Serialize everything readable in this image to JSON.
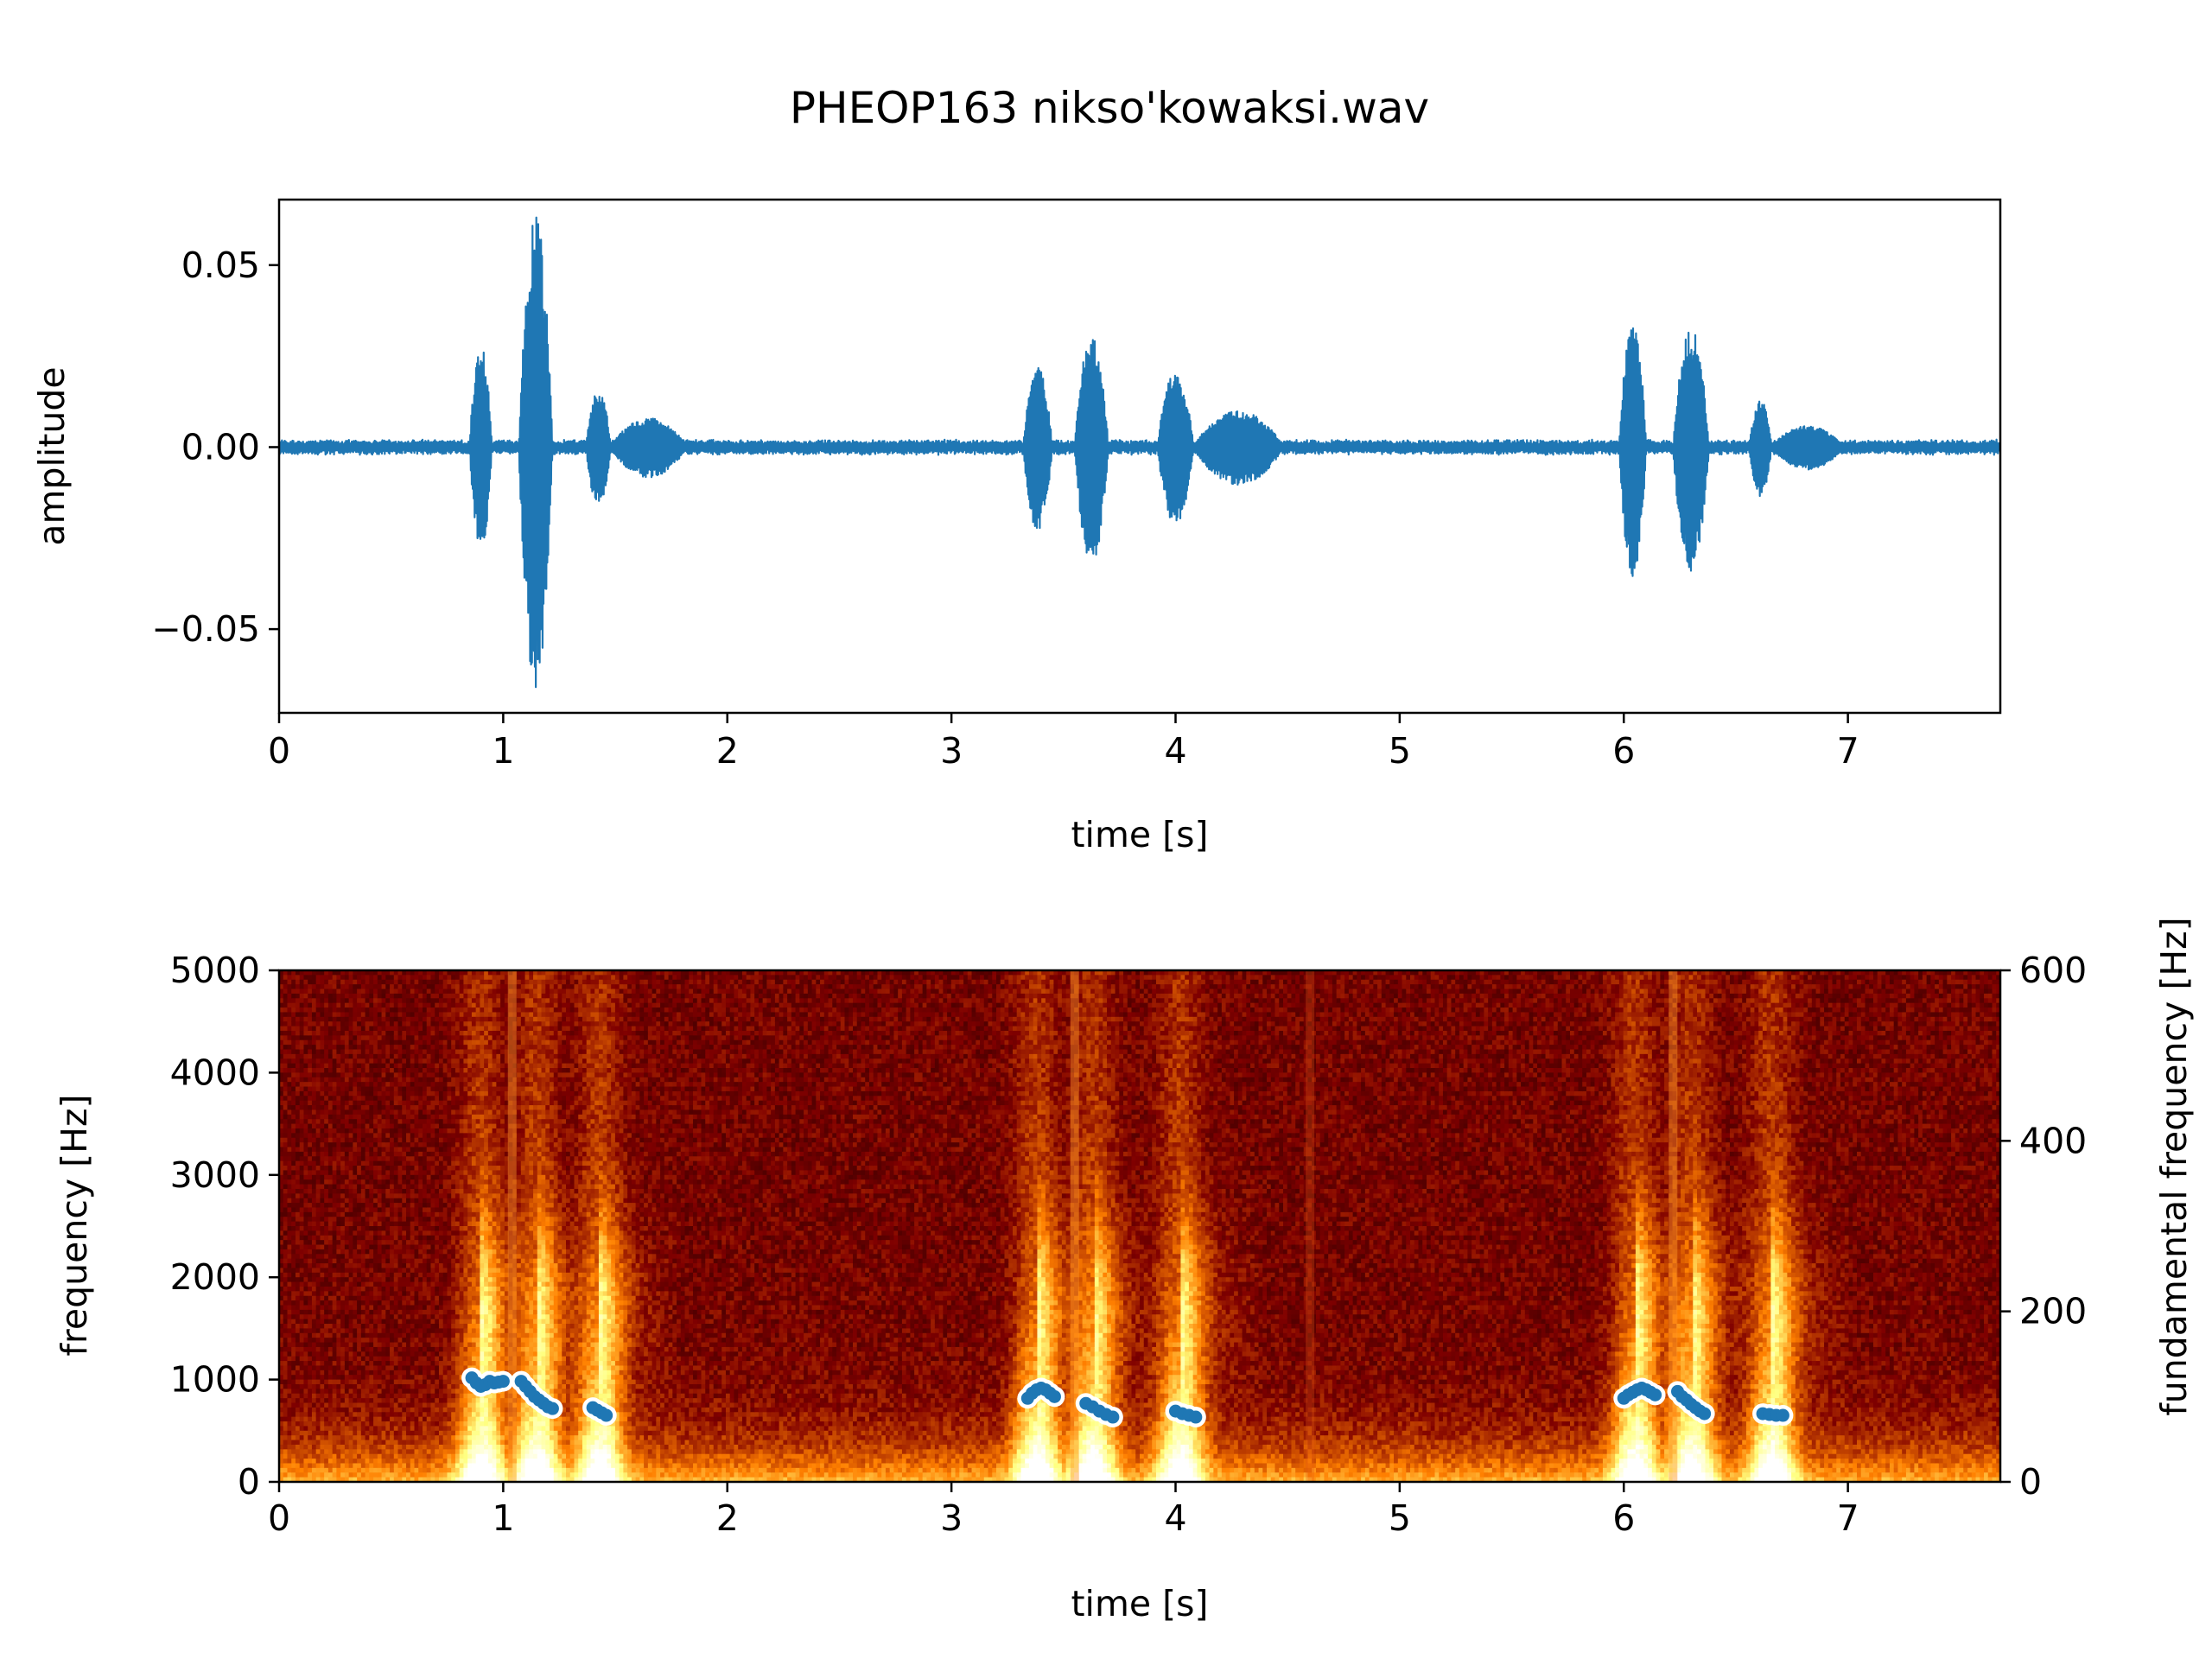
{
  "title": "PHEOP163 nikso'kowaksi.wav",
  "chart_data": [
    {
      "type": "line",
      "name": "waveform",
      "xlabel": "time [s]",
      "ylabel": "amplitude",
      "xlim": [
        0,
        7.68
      ],
      "ylim": [
        -0.073,
        0.068
      ],
      "xticks": [
        0,
        1,
        2,
        3,
        4,
        5,
        6,
        7
      ],
      "xtick_labels": [
        "0",
        "1",
        "2",
        "3",
        "4",
        "5",
        "6",
        "7"
      ],
      "yticks": [
        -0.05,
        0.0,
        0.05
      ],
      "ytick_labels": [
        "−0.05",
        "0.00",
        "0.05"
      ],
      "color": "#1f77b4",
      "noise_floor": 0.0015,
      "segments": [
        {
          "start": 0.85,
          "end": 0.95,
          "amp": 0.028
        },
        {
          "start": 1.07,
          "end": 1.22,
          "amp": 0.064
        },
        {
          "start": 1.37,
          "end": 1.48,
          "amp": 0.016
        },
        {
          "start": 1.48,
          "end": 1.82,
          "amp": 0.008
        },
        {
          "start": 3.32,
          "end": 3.45,
          "amp": 0.022
        },
        {
          "start": 3.55,
          "end": 3.7,
          "amp": 0.031
        },
        {
          "start": 3.92,
          "end": 4.08,
          "amp": 0.021
        },
        {
          "start": 4.08,
          "end": 4.48,
          "amp": 0.01
        },
        {
          "start": 5.98,
          "end": 6.1,
          "amp": 0.035
        },
        {
          "start": 6.22,
          "end": 6.38,
          "amp": 0.033
        },
        {
          "start": 6.56,
          "end": 6.66,
          "amp": 0.013
        },
        {
          "start": 6.66,
          "end": 6.98,
          "amp": 0.006
        }
      ]
    },
    {
      "type": "heatmap",
      "name": "spectrogram",
      "xlabel": "time [s]",
      "ylabel": "frequency [Hz]",
      "y2label": "fundamental frequency [Hz]",
      "xlim": [
        0,
        7.68
      ],
      "ylim": [
        0,
        5000
      ],
      "y2lim": [
        0,
        600
      ],
      "xticks": [
        0,
        1,
        2,
        3,
        4,
        5,
        6,
        7
      ],
      "xtick_labels": [
        "0",
        "1",
        "2",
        "3",
        "4",
        "5",
        "6",
        "7"
      ],
      "yticks": [
        0,
        1000,
        2000,
        3000,
        4000,
        5000
      ],
      "ytick_labels": [
        "0",
        "1000",
        "2000",
        "3000",
        "4000",
        "5000"
      ],
      "y2ticks": [
        0,
        200,
        400,
        600
      ],
      "y2tick_labels": [
        "0",
        "200",
        "400",
        "600"
      ],
      "colormap": "afmhot",
      "bursts": [
        0.9,
        1.15,
        1.43,
        3.38,
        3.63,
        4.02,
        6.05,
        6.3,
        6.66
      ],
      "f0_series": {
        "name": "fundamental frequency",
        "color": "#1f77b4",
        "outline": "#ffffff",
        "segments": [
          {
            "t": [
              0.86,
              0.88,
              0.9,
              0.92,
              0.94,
              0.96,
              0.98,
              1.0
            ],
            "f0": [
              122,
              116,
              112,
              114,
              118,
              116,
              117,
              118
            ]
          },
          {
            "t": [
              1.08,
              1.1,
              1.12,
              1.14,
              1.16,
              1.18,
              1.2,
              1.22
            ],
            "f0": [
              118,
              112,
              106,
              100,
              96,
              92,
              88,
              86
            ]
          },
          {
            "t": [
              1.4,
              1.42,
              1.44,
              1.46
            ],
            "f0": [
              87,
              84,
              81,
              78
            ]
          },
          {
            "t": [
              3.34,
              3.36,
              3.38,
              3.4,
              3.42,
              3.44,
              3.46
            ],
            "f0": [
              98,
              104,
              108,
              110,
              108,
              104,
              100
            ]
          },
          {
            "t": [
              3.6,
              3.63,
              3.66,
              3.69,
              3.72
            ],
            "f0": [
              92,
              88,
              83,
              79,
              76
            ]
          },
          {
            "t": [
              4.0,
              4.03,
              4.06,
              4.09
            ],
            "f0": [
              83,
              80,
              78,
              76
            ]
          },
          {
            "t": [
              6.0,
              6.02,
              6.04,
              6.06,
              6.08,
              6.1,
              6.12,
              6.14
            ],
            "f0": [
              98,
              102,
              105,
              108,
              110,
              108,
              105,
              102
            ]
          },
          {
            "t": [
              6.24,
              6.26,
              6.28,
              6.3,
              6.32,
              6.34,
              6.36
            ],
            "f0": [
              106,
              100,
              96,
              91,
              87,
              83,
              80
            ]
          },
          {
            "t": [
              6.62,
              6.65,
              6.68,
              6.71
            ],
            "f0": [
              80,
              79,
              78,
              78
            ]
          }
        ]
      }
    }
  ]
}
